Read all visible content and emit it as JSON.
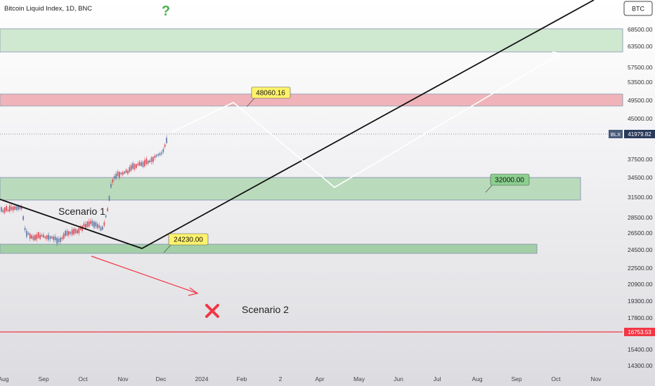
{
  "header": {
    "title": "Bitcoin Liquid Index, 1D, BNC",
    "symbol_badge": "BTC"
  },
  "question_mark": "?",
  "last_price": {
    "symbol": "BLX",
    "value": "41979.82"
  },
  "red_line_label": "16753.53",
  "chart_data": {
    "type": "candlestick",
    "title": "Bitcoin Liquid Index, 1D, BNC",
    "y_scale": "log",
    "ylim": [
      13500,
      90000
    ],
    "y_ticks": [
      "68500.00",
      "63500.00",
      "57500.00",
      "53500.00",
      "49500.00",
      "45000.00",
      "37500.00",
      "34500.00",
      "31500.00",
      "28500.00",
      "26500.00",
      "24500.00",
      "22500.00",
      "20900.00",
      "19300.00",
      "17800.00",
      "15400.00",
      "14300.00"
    ],
    "x_ticks": [
      "Aug",
      "Sep",
      "Oct",
      "Nov",
      "Dec",
      "2024",
      "Feb",
      "2",
      "Apr",
      "May",
      "Jun",
      "Jul",
      "Aug",
      "Sep",
      "Oct",
      "Nov"
    ],
    "last_value": 41979.82,
    "zones": [
      {
        "name": "upper-green-zone",
        "color": "#c8e6c9",
        "y_range": [
          61000,
          70000
        ]
      },
      {
        "name": "red-zone",
        "color": "#f2b8bd",
        "y_range": [
          48000,
          51500
        ]
      },
      {
        "name": "middle-green-zone",
        "color": "#b5d9b7",
        "y_range": [
          31000,
          35000
        ]
      },
      {
        "name": "lower-green-zone",
        "color": "#9ccc9f",
        "y_range": [
          23800,
          25000
        ]
      }
    ],
    "annotations": [
      {
        "label": "48060.16",
        "style": "yellow"
      },
      {
        "label": "32000.00",
        "style": "green"
      },
      {
        "label": "24230.00",
        "style": "yellow"
      },
      {
        "label": "Scenario 1",
        "style": "text"
      },
      {
        "label": "Scenario 2",
        "style": "text"
      }
    ],
    "horizontal_line": {
      "value": 16753.53,
      "color": "#f23645"
    },
    "colors": {
      "up": "#26a69a",
      "down": "#ef5350",
      "candle_body": "#7f8fb0"
    }
  }
}
